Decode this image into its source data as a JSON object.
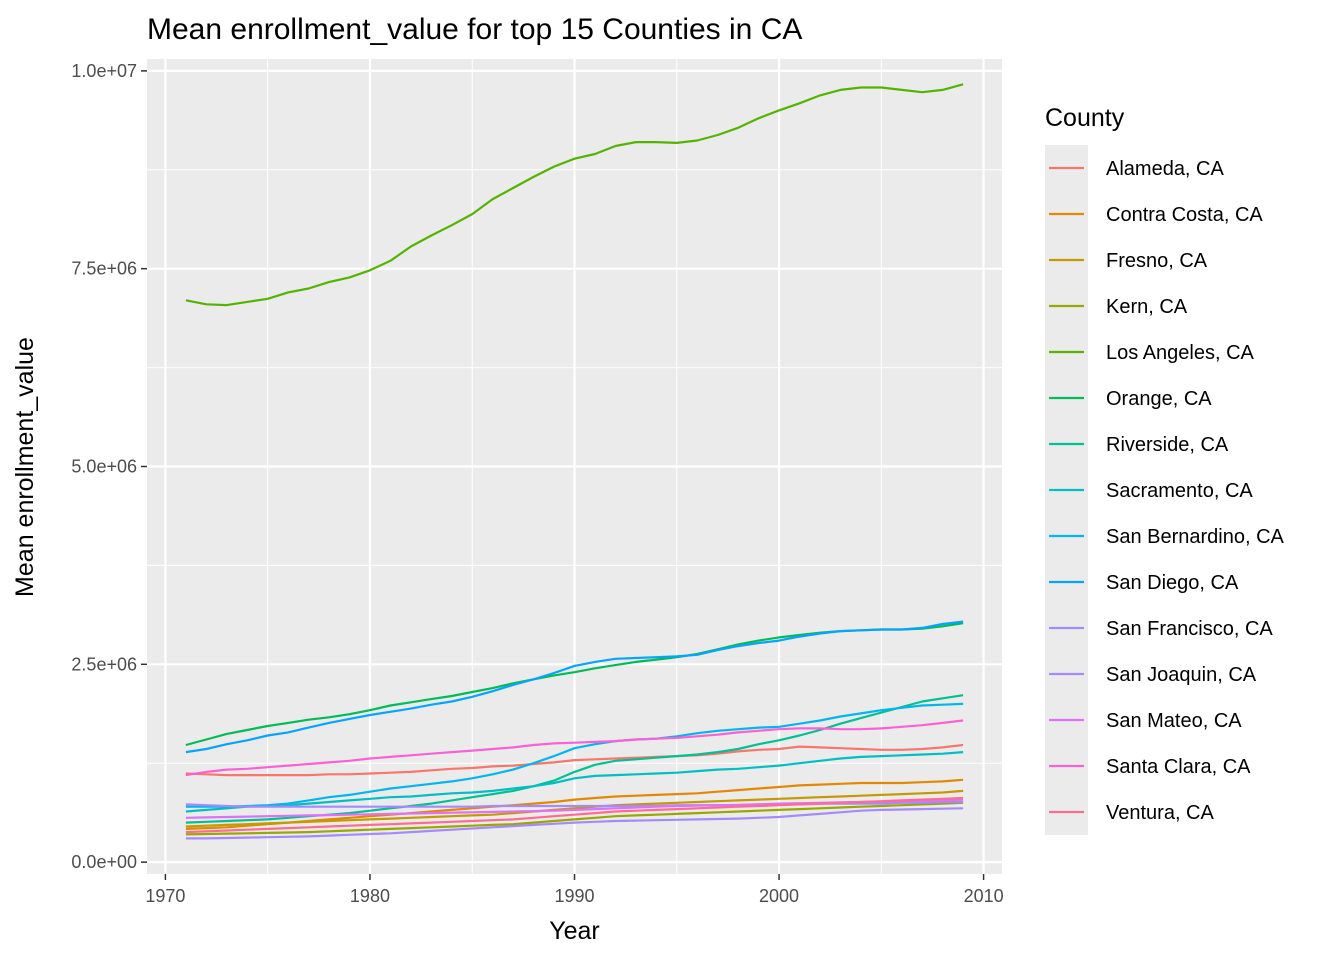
{
  "chart_data": {
    "type": "line",
    "title": "Mean enrollment_value for top 15 Counties in CA",
    "xlabel": "Year",
    "ylabel": "Mean enrollment_value",
    "xlim": [
      1969.1,
      2010.9
    ],
    "ylim": [
      -150000,
      10150000
    ],
    "x_ticks": [
      1970,
      1980,
      1990,
      2000,
      2010
    ],
    "x_tick_labels": [
      "1970",
      "1980",
      "1990",
      "2000",
      "2010"
    ],
    "y_ticks": [
      0,
      2500000,
      5000000,
      7500000,
      10000000
    ],
    "y_tick_labels": [
      "0.0e+00",
      "2.5e+06",
      "5.0e+06",
      "7.5e+06",
      "1.0e+07"
    ],
    "grid": true,
    "legend_title": "County",
    "legend_position": "right",
    "x": [
      1971,
      1972,
      1973,
      1974,
      1975,
      1976,
      1977,
      1978,
      1979,
      1980,
      1981,
      1982,
      1983,
      1984,
      1985,
      1986,
      1987,
      1988,
      1989,
      1990,
      1991,
      1992,
      1993,
      1994,
      1995,
      1996,
      1997,
      1998,
      1999,
      2000,
      2001,
      2002,
      2003,
      2004,
      2005,
      2006,
      2007,
      2008,
      2009
    ],
    "series": [
      {
        "name": "Alameda, CA",
        "color": "#F8766D",
        "values": [
          1120000,
          1110000,
          1100000,
          1100000,
          1100000,
          1100000,
          1100000,
          1110000,
          1110000,
          1120000,
          1130000,
          1140000,
          1160000,
          1180000,
          1190000,
          1210000,
          1220000,
          1240000,
          1260000,
          1290000,
          1300000,
          1310000,
          1320000,
          1330000,
          1340000,
          1350000,
          1370000,
          1400000,
          1420000,
          1430000,
          1460000,
          1450000,
          1440000,
          1430000,
          1420000,
          1420000,
          1430000,
          1450000,
          1480000
        ]
      },
      {
        "name": "Contra Costa, CA",
        "color": "#E38900",
        "values": [
          420000,
          430000,
          440000,
          460000,
          480000,
          500000,
          520000,
          540000,
          560000,
          580000,
          600000,
          620000,
          640000,
          660000,
          680000,
          700000,
          720000,
          740000,
          760000,
          790000,
          810000,
          830000,
          840000,
          850000,
          860000,
          870000,
          890000,
          910000,
          930000,
          950000,
          970000,
          980000,
          990000,
          1000000,
          1000000,
          1000000,
          1010000,
          1020000,
          1040000
        ]
      },
      {
        "name": "Fresno, CA",
        "color": "#C49A00",
        "values": [
          450000,
          460000,
          470000,
          480000,
          490000,
          500000,
          510000,
          520000,
          530000,
          540000,
          550000,
          560000,
          570000,
          580000,
          590000,
          600000,
          620000,
          640000,
          660000,
          680000,
          700000,
          720000,
          730000,
          740000,
          750000,
          760000,
          770000,
          780000,
          790000,
          800000,
          810000,
          820000,
          830000,
          840000,
          850000,
          860000,
          870000,
          880000,
          900000
        ]
      },
      {
        "name": "Kern, CA",
        "color": "#99A800",
        "values": [
          350000,
          355000,
          360000,
          365000,
          370000,
          375000,
          380000,
          390000,
          400000,
          410000,
          420000,
          430000,
          440000,
          450000,
          460000,
          470000,
          480000,
          500000,
          520000,
          540000,
          560000,
          580000,
          590000,
          600000,
          610000,
          620000,
          630000,
          640000,
          650000,
          660000,
          670000,
          680000,
          690000,
          700000,
          710000,
          720000,
          730000,
          740000,
          750000
        ]
      },
      {
        "name": "Los Angeles, CA",
        "color": "#53B400",
        "values": [
          7100000,
          7050000,
          7040000,
          7080000,
          7120000,
          7200000,
          7250000,
          7330000,
          7390000,
          7480000,
          7600000,
          7780000,
          7920000,
          8050000,
          8190000,
          8380000,
          8520000,
          8660000,
          8790000,
          8890000,
          8950000,
          9050000,
          9100000,
          9100000,
          9090000,
          9120000,
          9190000,
          9280000,
          9400000,
          9500000,
          9590000,
          9690000,
          9760000,
          9790000,
          9790000,
          9760000,
          9730000,
          9760000,
          9830000
        ]
      },
      {
        "name": "Orange, CA",
        "color": "#00BC56",
        "values": [
          1480000,
          1550000,
          1620000,
          1670000,
          1720000,
          1760000,
          1800000,
          1830000,
          1870000,
          1920000,
          1980000,
          2020000,
          2060000,
          2100000,
          2150000,
          2200000,
          2260000,
          2310000,
          2360000,
          2400000,
          2450000,
          2490000,
          2530000,
          2560000,
          2590000,
          2630000,
          2690000,
          2750000,
          2800000,
          2840000,
          2870000,
          2900000,
          2920000,
          2930000,
          2940000,
          2940000,
          2950000,
          2980000,
          3020000
        ]
      },
      {
        "name": "Riverside, CA",
        "color": "#00C094",
        "values": [
          500000,
          510000,
          520000,
          530000,
          540000,
          560000,
          580000,
          600000,
          620000,
          650000,
          680000,
          710000,
          740000,
          780000,
          820000,
          860000,
          900000,
          960000,
          1030000,
          1140000,
          1230000,
          1280000,
          1300000,
          1320000,
          1340000,
          1360000,
          1390000,
          1430000,
          1490000,
          1540000,
          1600000,
          1670000,
          1750000,
          1820000,
          1890000,
          1960000,
          2030000,
          2070000,
          2110000
        ]
      },
      {
        "name": "Sacramento, CA",
        "color": "#00BFC4",
        "values": [
          640000,
          660000,
          680000,
          700000,
          710000,
          720000,
          740000,
          760000,
          780000,
          800000,
          820000,
          830000,
          850000,
          870000,
          880000,
          900000,
          930000,
          960000,
          1000000,
          1060000,
          1090000,
          1100000,
          1110000,
          1120000,
          1130000,
          1150000,
          1170000,
          1180000,
          1200000,
          1220000,
          1250000,
          1280000,
          1310000,
          1330000,
          1340000,
          1350000,
          1360000,
          1370000,
          1390000
        ]
      },
      {
        "name": "San Bernardino, CA",
        "color": "#00B6EB",
        "values": [
          700000,
          700000,
          700000,
          710000,
          720000,
          740000,
          780000,
          820000,
          850000,
          890000,
          930000,
          960000,
          990000,
          1020000,
          1060000,
          1110000,
          1170000,
          1250000,
          1340000,
          1440000,
          1490000,
          1530000,
          1550000,
          1560000,
          1590000,
          1630000,
          1660000,
          1680000,
          1700000,
          1710000,
          1750000,
          1790000,
          1840000,
          1880000,
          1920000,
          1950000,
          1980000,
          1990000,
          2000000
        ]
      },
      {
        "name": "San Diego, CA",
        "color": "#06A4FF",
        "values": [
          1390000,
          1430000,
          1490000,
          1540000,
          1600000,
          1640000,
          1700000,
          1760000,
          1810000,
          1860000,
          1900000,
          1940000,
          1990000,
          2030000,
          2090000,
          2160000,
          2240000,
          2310000,
          2390000,
          2480000,
          2530000,
          2570000,
          2580000,
          2590000,
          2600000,
          2620000,
          2680000,
          2730000,
          2770000,
          2800000,
          2850000,
          2890000,
          2920000,
          2930000,
          2940000,
          2940000,
          2960000,
          3010000,
          3040000
        ]
      },
      {
        "name": "San Francisco, CA",
        "color": "#A58AFF",
        "values": [
          730000,
          720000,
          710000,
          700000,
          700000,
          700000,
          700000,
          700000,
          700000,
          700000,
          700000,
          700000,
          700000,
          700000,
          700000,
          710000,
          710000,
          710000,
          710000,
          710000,
          710000,
          710000,
          710000,
          710000,
          720000,
          720000,
          720000,
          720000,
          730000,
          730000,
          730000,
          740000,
          740000,
          740000,
          740000,
          750000,
          750000,
          760000,
          760000
        ]
      },
      {
        "name": "San Joaquin, CA",
        "color": "#A58AFF",
        "values": [
          300000,
          300000,
          305000,
          310000,
          315000,
          320000,
          325000,
          335000,
          345000,
          355000,
          365000,
          380000,
          395000,
          410000,
          425000,
          440000,
          455000,
          470000,
          485000,
          500000,
          510000,
          520000,
          525000,
          530000,
          535000,
          540000,
          545000,
          550000,
          560000,
          570000,
          590000,
          610000,
          630000,
          650000,
          660000,
          665000,
          670000,
          675000,
          680000
        ]
      },
      {
        "name": "San Mateo, CA",
        "color": "#DF70F8",
        "values": [
          560000,
          565000,
          570000,
          575000,
          580000,
          585000,
          590000,
          595000,
          600000,
          605000,
          610000,
          615000,
          620000,
          625000,
          630000,
          635000,
          640000,
          645000,
          650000,
          660000,
          670000,
          680000,
          690000,
          700000,
          710000,
          715000,
          720000,
          725000,
          730000,
          740000,
          745000,
          750000,
          755000,
          760000,
          765000,
          770000,
          775000,
          780000,
          790000
        ]
      },
      {
        "name": "Santa Clara, CA",
        "color": "#FB61D7",
        "values": [
          1100000,
          1140000,
          1170000,
          1180000,
          1200000,
          1220000,
          1240000,
          1260000,
          1280000,
          1310000,
          1330000,
          1350000,
          1370000,
          1390000,
          1410000,
          1430000,
          1450000,
          1480000,
          1500000,
          1510000,
          1520000,
          1530000,
          1550000,
          1560000,
          1570000,
          1590000,
          1610000,
          1640000,
          1660000,
          1680000,
          1690000,
          1690000,
          1680000,
          1680000,
          1690000,
          1710000,
          1730000,
          1760000,
          1790000
        ]
      },
      {
        "name": "Ventura, CA",
        "color": "#FF6C91",
        "values": [
          380000,
          390000,
          400000,
          410000,
          420000,
          430000,
          440000,
          450000,
          460000,
          470000,
          480000,
          490000,
          500000,
          510000,
          520000,
          530000,
          540000,
          560000,
          580000,
          600000,
          620000,
          640000,
          650000,
          660000,
          670000,
          680000,
          690000,
          700000,
          710000,
          720000,
          730000,
          740000,
          750000,
          760000,
          770000,
          780000,
          790000,
          800000,
          810000
        ]
      }
    ]
  }
}
